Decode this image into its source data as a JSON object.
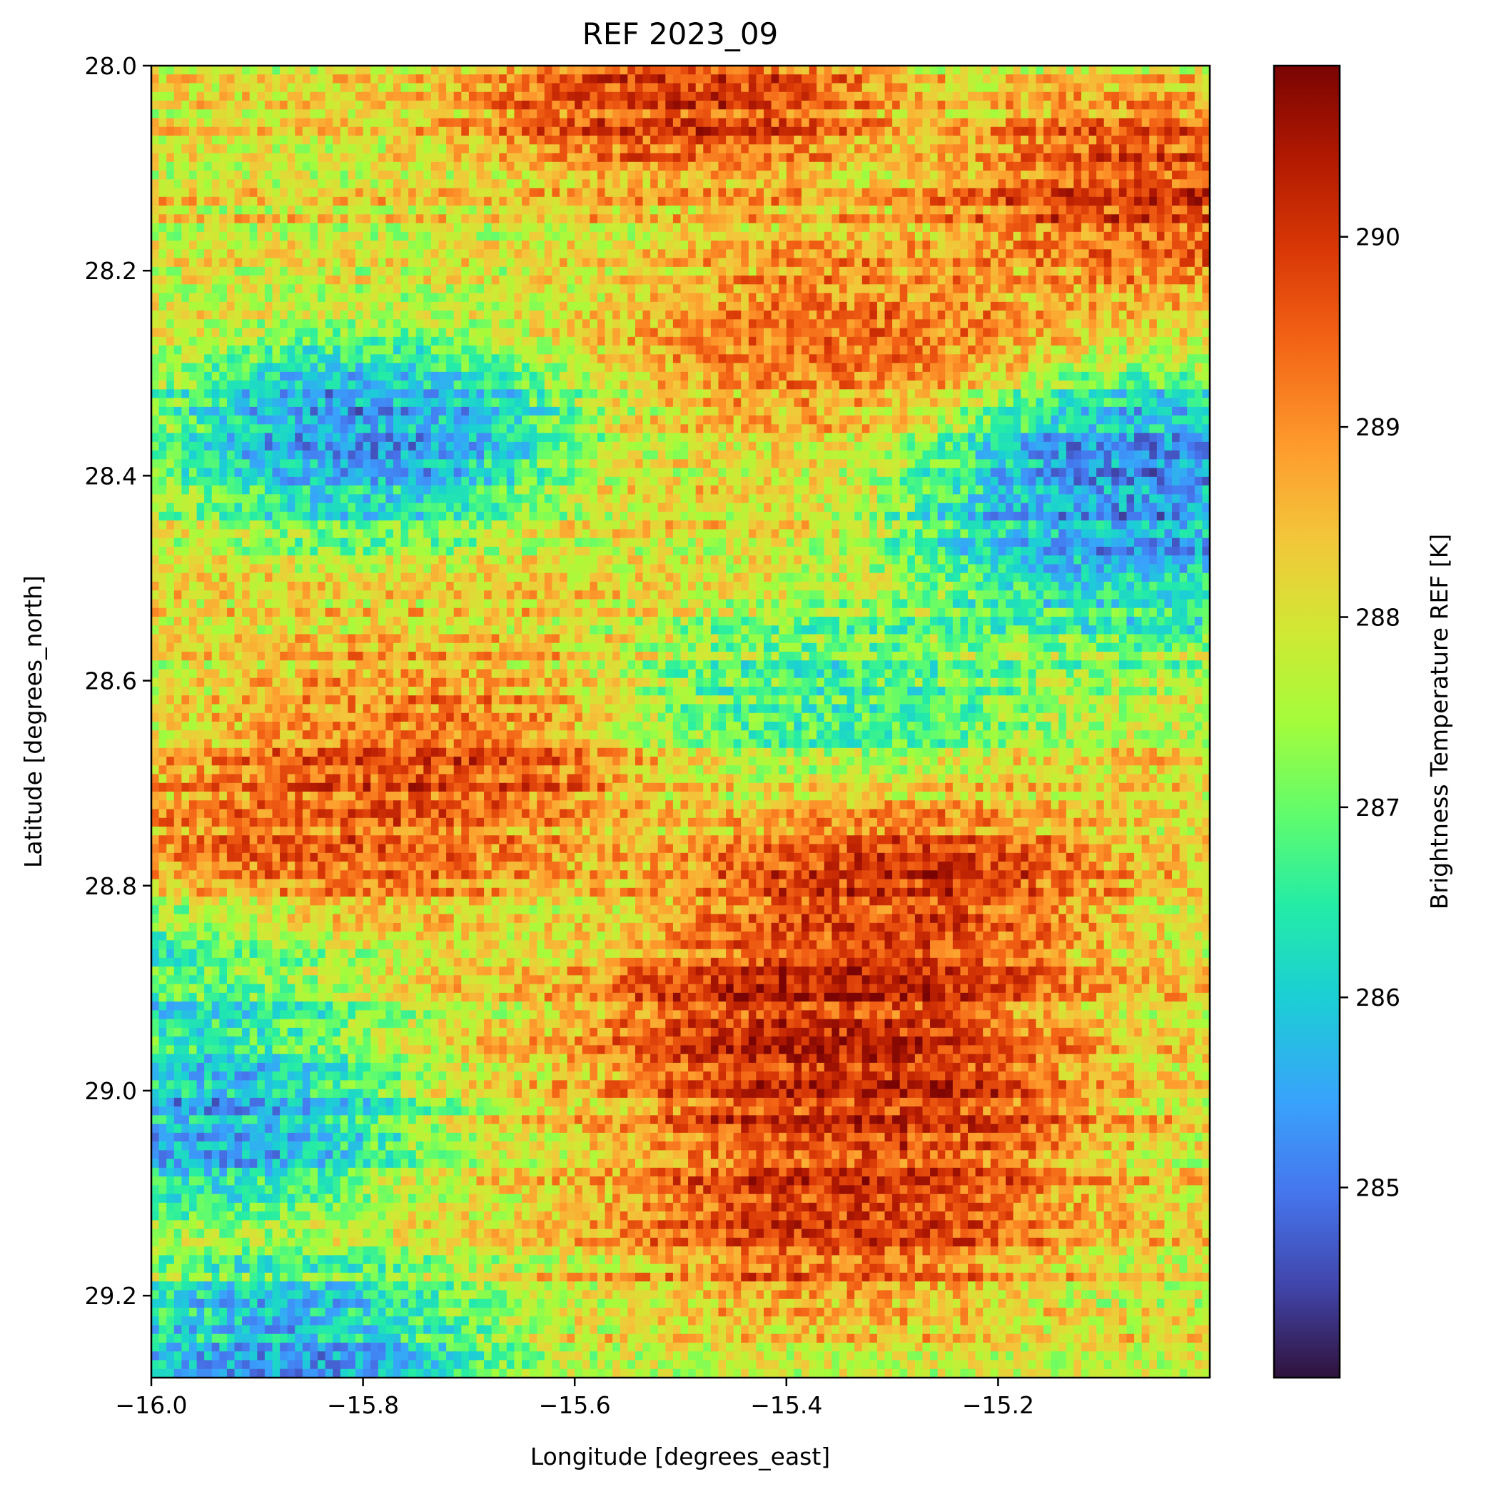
{
  "chart_data": {
    "type": "heatmap",
    "title": "REF 2023_09",
    "xlabel": "Longitude [degrees_east]",
    "ylabel": "Latitude [degrees_north]",
    "xlim": [
      -16.0,
      -15.0
    ],
    "ylim": [
      29.28,
      28.0
    ],
    "x_ticks": [
      -16.0,
      -15.8,
      -15.6,
      -15.4,
      -15.2
    ],
    "x_tick_labels": [
      "−16.0",
      "−15.8",
      "−15.6",
      "−15.4",
      "−15.2"
    ],
    "y_ticks": [
      28.0,
      28.2,
      28.4,
      28.6,
      28.8,
      29.0,
      29.2
    ],
    "y_tick_labels": [
      "28.0",
      "28.2",
      "28.4",
      "28.6",
      "28.8",
      "29.0",
      "29.2"
    ],
    "colorbar": {
      "label": "Brightness Temperature REF [K]",
      "vmin": 284.0,
      "vmax": 290.9,
      "ticks": [
        285,
        286,
        287,
        288,
        289,
        290
      ],
      "tick_labels": [
        "285",
        "286",
        "287",
        "288",
        "289",
        "290"
      ],
      "colormap": "turbo"
    },
    "grid": false,
    "regions": [
      {
        "lon": -15.5,
        "lat": 28.02,
        "value": 290.4
      },
      {
        "lon": -15.05,
        "lat": 28.13,
        "value": 290.3
      },
      {
        "lon": -15.35,
        "lat": 28.25,
        "value": 289.6
      },
      {
        "lon": -15.8,
        "lat": 28.36,
        "value": 284.6
      },
      {
        "lon": -15.07,
        "lat": 28.4,
        "value": 284.4
      },
      {
        "lon": -15.08,
        "lat": 28.48,
        "value": 285.3
      },
      {
        "lon": -15.35,
        "lat": 28.6,
        "value": 286.5
      },
      {
        "lon": -15.75,
        "lat": 28.68,
        "value": 290.0
      },
      {
        "lon": -15.9,
        "lat": 28.81,
        "value": 290.5
      },
      {
        "lon": -15.3,
        "lat": 28.82,
        "value": 290.5
      },
      {
        "lon": -15.95,
        "lat": 28.86,
        "value": 285.0
      },
      {
        "lon": -15.38,
        "lat": 28.93,
        "value": 290.6
      },
      {
        "lon": -15.32,
        "lat": 29.02,
        "value": 290.4
      },
      {
        "lon": -15.95,
        "lat": 29.03,
        "value": 284.8
      },
      {
        "lon": -15.35,
        "lat": 29.12,
        "value": 290.2
      },
      {
        "lon": -15.88,
        "lat": 29.26,
        "value": 285.0
      }
    ],
    "notes": ""
  }
}
